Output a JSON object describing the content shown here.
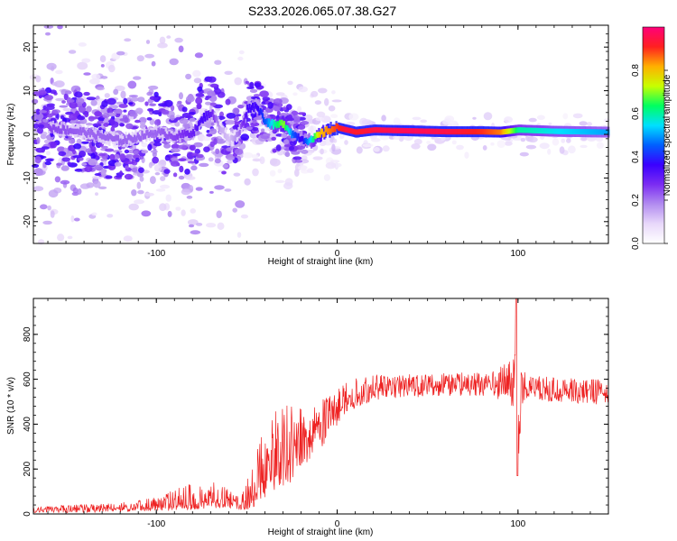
{
  "figure_title": "S233.2026.065.07.38.G27",
  "colormap_colors": [
    "#ffffff",
    "#e8d8fa",
    "#b28cf0",
    "#7b2cf2",
    "#3a00ff",
    "#0060ff",
    "#00e0ff",
    "#00ff60",
    "#c8ff00",
    "#ffb000",
    "#ff2020",
    "#ff007a"
  ],
  "chart_data": [
    {
      "type": "heatmap",
      "title": "S233.2026.065.07.38.G27",
      "xlabel": "Height of straight line (km)",
      "ylabel": "Frequency (Hz)",
      "xlim": [
        -168,
        150
      ],
      "ylim": [
        -25,
        25
      ],
      "xticks": [
        -100,
        0,
        100
      ],
      "yticks": [
        -20,
        -10,
        0,
        10,
        20
      ],
      "colorbar": {
        "label": "Normalized spectral amplitude",
        "range": [
          0,
          1
        ],
        "ticks": [
          0.0,
          0.2,
          0.4,
          0.6,
          0.8
        ]
      },
      "ridge": {
        "description_points_x": [
          -160,
          -140,
          -120,
          -100,
          -90,
          -80,
          -74,
          -70,
          -65,
          -60,
          -55,
          -50,
          -45,
          -40,
          -35,
          -30,
          -25,
          -20,
          -15,
          -10,
          -5,
          0,
          5,
          10,
          20,
          40,
          60,
          80,
          90,
          100,
          120,
          150
        ],
        "frequency_hz": [
          1.5,
          0.5,
          -1.5,
          0.5,
          -0.5,
          0.5,
          4,
          5,
          1.5,
          -1.5,
          0,
          6,
          6.5,
          3,
          2,
          2.5,
          0,
          -1,
          -1.5,
          0,
          1,
          1.5,
          1,
          0.5,
          1,
          0.8,
          0.6,
          0.6,
          0.5,
          1,
          0.7,
          0.5
        ],
        "amplitude": [
          0.25,
          0.22,
          0.22,
          0.22,
          0.25,
          0.3,
          0.35,
          0.3,
          0.15,
          0.12,
          0.2,
          0.35,
          0.35,
          0.45,
          0.6,
          0.7,
          0.45,
          0.35,
          0.55,
          0.8,
          0.85,
          0.9,
          0.95,
          0.92,
          0.95,
          0.97,
          0.95,
          0.9,
          0.85,
          0.6,
          0.55,
          0.5
        ]
      }
    },
    {
      "type": "line",
      "xlabel": "Height of straight line (km)",
      "ylabel": "SNR (10 * v/v)",
      "xlim": [
        -168,
        150
      ],
      "ylim": [
        0,
        960
      ],
      "xticks": [
        -100,
        0,
        100
      ],
      "yticks": [
        0,
        200,
        400,
        600,
        800
      ],
      "line_color": "#ee2222",
      "series": [
        {
          "name": "SNR",
          "x": [
            -168,
            -150,
            -130,
            -110,
            -100,
            -90,
            -80,
            -70,
            -60,
            -55,
            -50,
            -46,
            -42,
            -38,
            -34,
            -30,
            -26,
            -22,
            -18,
            -14,
            -10,
            -6,
            -2,
            2,
            6,
            10,
            15,
            20,
            25,
            30,
            40,
            50,
            60,
            70,
            80,
            90,
            95,
            98,
            99,
            100,
            102,
            105,
            110,
            120,
            130,
            140,
            150
          ],
          "y": [
            15,
            20,
            22,
            25,
            30,
            35,
            45,
            60,
            50,
            45,
            40,
            70,
            140,
            200,
            230,
            250,
            270,
            290,
            320,
            360,
            380,
            410,
            440,
            470,
            490,
            510,
            530,
            545,
            555,
            560,
            565,
            565,
            570,
            570,
            570,
            575,
            580,
            600,
            960,
            170,
            580,
            570,
            560,
            555,
            550,
            545,
            540
          ],
          "envelope_max": [
            30,
            40,
            45,
            60,
            80,
            110,
            140,
            150,
            120,
            80,
            150,
            270,
            380,
            430,
            470,
            520,
            480,
            470,
            470,
            500,
            530,
            560,
            580,
            590,
            600,
            610,
            615,
            620,
            620,
            620,
            625,
            625,
            630,
            630,
            630,
            660,
            690,
            700,
            960,
            600,
            650,
            620,
            615,
            610,
            605,
            600,
            600
          ],
          "envelope_min": [
            5,
            5,
            8,
            10,
            12,
            15,
            20,
            25,
            25,
            20,
            15,
            30,
            60,
            80,
            100,
            120,
            140,
            180,
            220,
            250,
            280,
            320,
            370,
            420,
            450,
            470,
            490,
            500,
            510,
            515,
            520,
            520,
            520,
            525,
            525,
            510,
            500,
            450,
            170,
            170,
            480,
            510,
            505,
            500,
            495,
            490,
            485
          ]
        }
      ]
    }
  ]
}
